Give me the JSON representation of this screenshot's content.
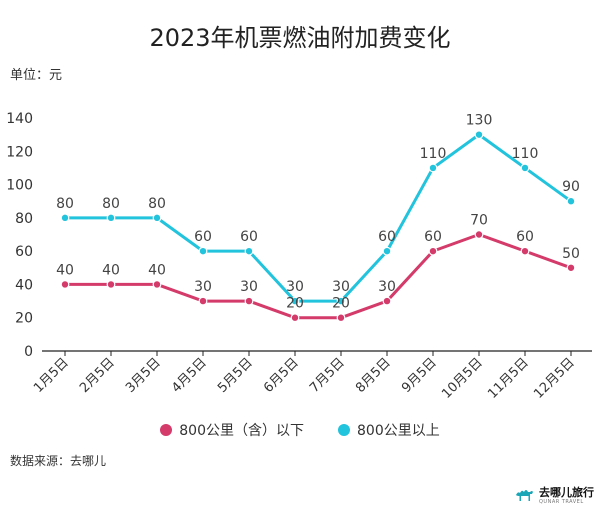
{
  "title": "2023年机票燃油附加费变化",
  "unit_label": "单位：元",
  "source": "数据来源：去哪儿",
  "brand": {
    "name": "去哪儿旅行",
    "tagline": "QUNAR TRAVEL",
    "icon": "camel-icon"
  },
  "colors": {
    "series1": "#d43a6a",
    "series2": "#22c3dc",
    "axis": "#222222"
  },
  "chart_data": {
    "type": "line",
    "title": "2023年机票燃油附加费变化",
    "ylabel": "单位：元",
    "ylim": [
      0,
      140
    ],
    "yticks": [
      0,
      20,
      40,
      60,
      80,
      100,
      120,
      140
    ],
    "grid": false,
    "legend_position": "bottom",
    "categories": [
      "1月5日",
      "2月5日",
      "3月5日",
      "4月5日",
      "5月5日",
      "6月5日",
      "7月5日",
      "8月5日",
      "9月5日",
      "10月5日",
      "11月5日",
      "12月5日"
    ],
    "series": [
      {
        "name": "800公里（含）以下",
        "color": "#d43a6a",
        "values": [
          40,
          40,
          40,
          30,
          30,
          20,
          20,
          30,
          60,
          70,
          60,
          50
        ]
      },
      {
        "name": "800公里以上",
        "color": "#22c3dc",
        "values": [
          80,
          80,
          80,
          60,
          60,
          30,
          30,
          60,
          110,
          130,
          110,
          90
        ]
      }
    ]
  }
}
